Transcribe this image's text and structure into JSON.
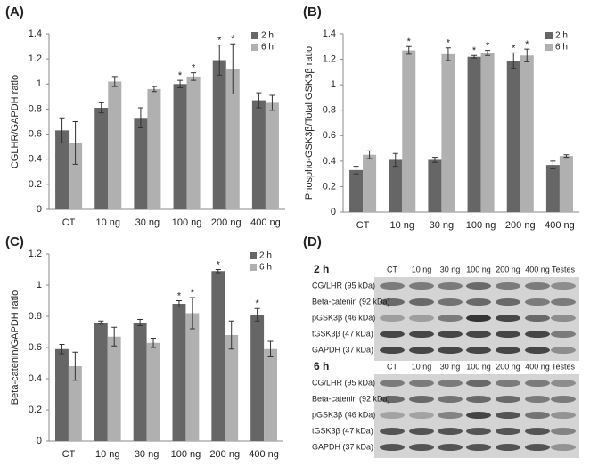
{
  "chart_data": [
    {
      "type": "bar",
      "panel": "(A)",
      "y_label": "CGLHR/GAPDH ratio",
      "categories": [
        "CT",
        "10 ng",
        "30 ng",
        "100 ng",
        "200 ng",
        "400 ng"
      ],
      "ylim": [
        0,
        1.4
      ],
      "yticks": [
        0,
        0.2,
        0.4,
        0.6,
        0.8,
        1,
        1.2,
        1.4
      ],
      "legend": "top-right",
      "series": [
        {
          "name": "2 h",
          "color": "#666666",
          "values": [
            0.63,
            0.81,
            0.73,
            1.0,
            1.19,
            0.87
          ],
          "errors": [
            0.1,
            0.04,
            0.08,
            0.03,
            0.12,
            0.06
          ],
          "significance": [
            null,
            null,
            null,
            "*",
            "*",
            null
          ]
        },
        {
          "name": "6 h",
          "color": "#b0b0b0",
          "values": [
            0.53,
            1.02,
            0.96,
            1.06,
            1.12,
            0.85
          ],
          "errors": [
            0.17,
            0.04,
            0.02,
            0.03,
            0.2,
            0.06
          ],
          "significance": [
            null,
            null,
            null,
            "*",
            "*",
            null
          ]
        }
      ]
    },
    {
      "type": "bar",
      "panel": "(B)",
      "y_label": "Phospho-GSK3β/Total GSK3β ratio",
      "categories": [
        "CT",
        "10 ng",
        "30 ng",
        "100 ng",
        "200 ng",
        "400 ng"
      ],
      "ylim": [
        0,
        1.4
      ],
      "yticks": [
        0,
        0.2,
        0.4,
        0.6,
        0.8,
        1,
        1.2,
        1.4
      ],
      "legend": "top-right",
      "series": [
        {
          "name": "2 h",
          "color": "#666666",
          "values": [
            0.33,
            0.41,
            0.41,
            1.22,
            1.19,
            0.37
          ],
          "errors": [
            0.03,
            0.05,
            0.02,
            0.01,
            0.06,
            0.03
          ],
          "significance": [
            null,
            null,
            null,
            "*",
            "*",
            null
          ]
        },
        {
          "name": "6 h",
          "color": "#b0b0b0",
          "values": [
            0.45,
            1.27,
            1.24,
            1.25,
            1.23,
            0.44
          ],
          "errors": [
            0.03,
            0.03,
            0.05,
            0.02,
            0.05,
            0.01
          ],
          "significance": [
            null,
            "*",
            "*",
            "*",
            "*",
            null
          ]
        }
      ]
    },
    {
      "type": "bar",
      "panel": "(C)",
      "y_label": "Beta-catenin/GAPDH ratio",
      "categories": [
        "CT",
        "10 ng",
        "30 ng",
        "100 ng",
        "200 ng",
        "400 ng"
      ],
      "ylim": [
        0,
        1.2
      ],
      "yticks": [
        0,
        0.2,
        0.4,
        0.6,
        0.8,
        1,
        1.2
      ],
      "legend": "top-right",
      "series": [
        {
          "name": "2 h",
          "color": "#666666",
          "values": [
            0.59,
            0.76,
            0.76,
            0.88,
            1.09,
            0.81
          ],
          "errors": [
            0.03,
            0.01,
            0.02,
            0.02,
            0.01,
            0.04
          ],
          "significance": [
            null,
            null,
            null,
            "*",
            "*",
            "*"
          ]
        },
        {
          "name": "6 h",
          "color": "#b0b0b0",
          "values": [
            0.48,
            0.67,
            0.63,
            0.82,
            0.68,
            0.59
          ],
          "errors": [
            0.09,
            0.06,
            0.03,
            0.1,
            0.09,
            0.05
          ],
          "significance": [
            null,
            null,
            null,
            "*",
            null,
            null
          ]
        }
      ]
    }
  ],
  "blot": {
    "panel": "(D)",
    "lanes": [
      "CT",
      "10 ng",
      "30 ng",
      "100 ng",
      "200 ng",
      "400 ng",
      "Testes"
    ],
    "blocks": [
      {
        "title": "2 h",
        "rows": [
          "CG/LHR (95 kDa)",
          "Beta-catenin (92 kDa)",
          "pGSK3β (46 kDa)",
          "tGSK3β (47 kDa)",
          "GAPDH (37 kDa)"
        ]
      },
      {
        "title": "6 h",
        "rows": [
          "CG/LHR (95 kDa)",
          "Beta-catenin (92 kDa)",
          "pGSK3β (46 kDa)",
          "tGSK3β (47 kDa)",
          "GAPDH (37 kDa)"
        ]
      }
    ]
  }
}
